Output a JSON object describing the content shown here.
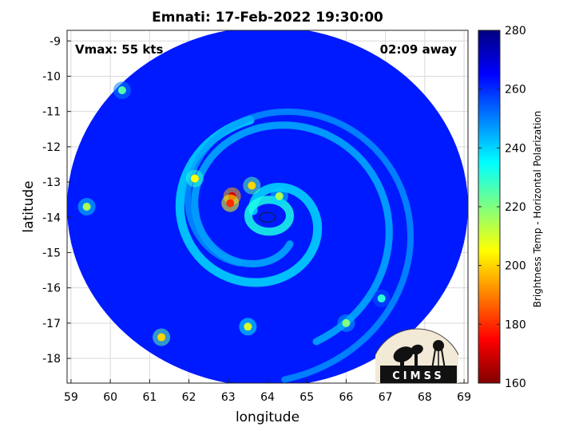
{
  "title": "Emnati: 17-Feb-2022 19:30:00",
  "annotations": {
    "vmax": "Vmax: 55 kts",
    "away": "02:09 away"
  },
  "colorbar": {
    "label": "Brightness Temp - Horizontal Polarization",
    "range": [
      160,
      280
    ],
    "ticks": [
      160,
      180,
      200,
      220,
      240,
      260,
      280
    ],
    "colormap": "jet",
    "colors": [
      "#800000",
      "#ff0000",
      "#ff8000",
      "#ffff00",
      "#80ff80",
      "#00ffff",
      "#0080ff",
      "#0000ff",
      "#000080"
    ]
  },
  "logo": {
    "text": "CIMSS"
  },
  "chart_data": {
    "type": "heatmap",
    "title": "Emnati: 17-Feb-2022 19:30:00",
    "xlabel": "longitude",
    "ylabel": "latitude",
    "xlim": [
      58.9,
      69.1
    ],
    "ylim": [
      -18.7,
      -8.7
    ],
    "xticks": [
      59,
      60,
      61,
      62,
      63,
      64,
      65,
      66,
      67,
      68,
      69
    ],
    "yticks": [
      -9,
      -10,
      -11,
      -12,
      -13,
      -14,
      -15,
      -16,
      -17,
      -18
    ],
    "grid": true,
    "swath_center": [
      64.0,
      -13.7
    ],
    "swath_radius_deg": 5.1,
    "background_value": 262,
    "eye": {
      "lon": 64.0,
      "lat": -14.0,
      "value": 262
    },
    "cold_features": [
      {
        "lon": 63.1,
        "lat": -13.4,
        "value": 170
      },
      {
        "lon": 63.05,
        "lat": -13.6,
        "value": 180
      },
      {
        "lon": 62.15,
        "lat": -12.9,
        "value": 205
      },
      {
        "lon": 63.6,
        "lat": -13.1,
        "value": 200
      },
      {
        "lon": 64.3,
        "lat": -13.4,
        "value": 215
      },
      {
        "lon": 61.3,
        "lat": -17.4,
        "value": 200
      },
      {
        "lon": 63.5,
        "lat": -17.1,
        "value": 210
      },
      {
        "lon": 66.0,
        "lat": -17.0,
        "value": 220
      },
      {
        "lon": 59.4,
        "lat": -13.7,
        "value": 215
      },
      {
        "lon": 60.3,
        "lat": -10.4,
        "value": 225
      },
      {
        "lon": 66.9,
        "lat": -16.3,
        "value": 230
      }
    ]
  }
}
